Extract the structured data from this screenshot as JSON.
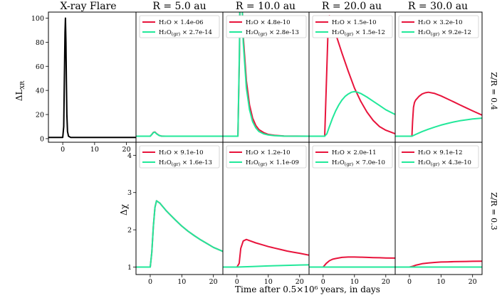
{
  "colors": {
    "water": "#e8143c",
    "ice": "#22e89a",
    "flare": "#000000"
  },
  "column_titles": [
    "X-ray Flare",
    "R = 5.0 au",
    "R = 10.0 au",
    "R = 20.0 au",
    "R = 30.0 au"
  ],
  "row_labels": [
    "Z/R = 0.4",
    "Z/R = 0.3"
  ],
  "xlabel": "Time after 0.5×10⁶ years, in days",
  "ylabel_top": "ΔL",
  "ylabel_top_sub": "XR",
  "ylabel_bottom": "Δχ",
  "legend_prefix": {
    "water": "H₂O × ",
    "ice": "H₂O",
    "ice_sub": "(gr)",
    "ice_mult": " × "
  },
  "chart_data": [
    {
      "panel": "flare",
      "type": "line",
      "title": "X-ray Flare",
      "xlim": [
        -4.5,
        23
      ],
      "ylim": [
        -3,
        105
      ],
      "xticks": [
        0,
        10,
        20
      ],
      "yticks": [
        0,
        20,
        40,
        60,
        80,
        100
      ],
      "series": [
        {
          "x": [
            -4.5,
            0,
            0.3,
            0.5,
            0.7,
            0.85,
            1.0,
            1.15,
            1.3,
            1.5,
            1.8,
            2.5,
            23
          ],
          "y": [
            1,
            1,
            10,
            50,
            88,
            100,
            80,
            45,
            20,
            6,
            2,
            1,
            1
          ]
        }
      ]
    },
    {
      "panel": "R5_Z04",
      "type": "line",
      "title": "R = 5.0 au",
      "row": "Z/R = 0.4",
      "xlim": [
        -4.5,
        23
      ],
      "ylim": [
        -3,
        105
      ],
      "legend": [
        "1.4e-06",
        "2.7e-14"
      ],
      "series": [
        {
          "key": "water",
          "x": [
            -4.5,
            0,
            0.5,
            1.0,
            1.5,
            2.0,
            2.8,
            3.6,
            5,
            23
          ],
          "y": [
            2,
            2,
            3.5,
            5.2,
            5.5,
            4.2,
            2.7,
            2.1,
            2,
            2
          ]
        },
        {
          "key": "ice",
          "x": [
            -4.5,
            0,
            0.5,
            1.0,
            1.5,
            2.0,
            2.8,
            3.6,
            5,
            23
          ],
          "y": [
            2,
            2,
            3.4,
            5.0,
            5.3,
            4.0,
            2.6,
            2.05,
            2,
            2
          ]
        }
      ]
    },
    {
      "panel": "R10_Z04",
      "type": "line",
      "title": "R = 10.0 au",
      "row": "Z/R = 0.4",
      "xlim": [
        -4.5,
        23
      ],
      "ylim": [
        -3,
        105
      ],
      "legend": [
        "4.8e-10",
        "2.8e-13"
      ],
      "series": [
        {
          "key": "water",
          "x": [
            -4.5,
            0.3,
            0.8,
            1.0,
            1.4,
            2.0,
            3.0,
            4.0,
            5.0,
            6.0,
            7.0,
            8.5,
            10,
            12,
            15,
            23
          ],
          "y": [
            2,
            2,
            70,
            130,
            130,
            85,
            48,
            28,
            17,
            11,
            7.5,
            5,
            3.5,
            2.8,
            2.2,
            2
          ]
        },
        {
          "key": "ice",
          "x": [
            -4.5,
            0.3,
            0.8,
            1.0,
            1.4,
            2.0,
            3.0,
            4.0,
            5.0,
            6.0,
            7.0,
            8.5,
            10,
            12,
            15,
            23
          ],
          "y": [
            2,
            2,
            75,
            130,
            130,
            80,
            42,
            24,
            14,
            9,
            6,
            4,
            3,
            2.4,
            2.1,
            2
          ]
        }
      ]
    },
    {
      "panel": "R20_Z04",
      "type": "line",
      "title": "R = 20.0 au",
      "row": "Z/R = 0.4",
      "xlim": [
        -4.5,
        23
      ],
      "ylim": [
        -3,
        105
      ],
      "legend": [
        "1.5e-10",
        "1.5e-12"
      ],
      "series": [
        {
          "key": "water",
          "x": [
            -4.5,
            0.5,
            1.2,
            1.6,
            2.0,
            2.5,
            3.0,
            4.0,
            5.0,
            6.0,
            8.0,
            10,
            12,
            14,
            16,
            18,
            20,
            23
          ],
          "y": [
            2,
            2,
            60,
            92,
            102,
            99,
            95,
            87,
            79,
            71,
            56,
            42,
            31,
            22,
            15,
            10,
            7,
            4
          ]
        },
        {
          "key": "ice",
          "x": [
            -4.5,
            0.5,
            1.2,
            2.0,
            3.0,
            4.0,
            5.0,
            6.0,
            7.0,
            8.0,
            9.0,
            10.0,
            11,
            12,
            14,
            16,
            18,
            20,
            23
          ],
          "y": [
            2,
            2,
            4,
            10,
            17,
            23,
            28,
            32,
            35,
            37,
            38.5,
            39,
            38.5,
            37.5,
            34.5,
            31,
            27.5,
            24,
            20
          ]
        }
      ]
    },
    {
      "panel": "R30_Z04",
      "type": "line",
      "title": "R = 30.0 au",
      "row": "Z/R = 0.4",
      "xlim": [
        -4.5,
        23
      ],
      "ylim": [
        -3,
        105
      ],
      "legend": [
        "3.2e-10",
        "9.2e-12"
      ],
      "series": [
        {
          "key": "water",
          "x": [
            -4.5,
            0.8,
            1.0,
            1.3,
            1.6,
            2.0,
            3.0,
            4.0,
            5.0,
            6.0,
            8,
            10,
            12,
            14,
            16,
            18,
            20,
            23
          ],
          "y": [
            2,
            2,
            14,
            26,
            30,
            32,
            35,
            37,
            38,
            38.5,
            37.5,
            35.5,
            33,
            30.5,
            28,
            25.5,
            23,
            19.5
          ]
        },
        {
          "key": "ice",
          "x": [
            -4.5,
            0.8,
            2,
            4,
            6,
            8,
            10,
            12,
            14,
            16,
            18,
            20,
            23
          ],
          "y": [
            2,
            2,
            3.5,
            5.8,
            7.8,
            9.6,
            11.2,
            12.6,
            13.8,
            14.8,
            15.6,
            16.3,
            17
          ]
        }
      ]
    },
    {
      "panel": "R5_Z03",
      "type": "line",
      "row": "Z/R = 0.3",
      "xlim": [
        -4.5,
        23
      ],
      "ylim": [
        0.8,
        4.35
      ],
      "xticks": [
        0,
        10,
        20
      ],
      "yticks": [
        1,
        2,
        3,
        4
      ],
      "legend": [
        "9.1e-10",
        "1.6e-13"
      ],
      "series": [
        {
          "key": "water",
          "x": [
            -4.5,
            0,
            0.5,
            1.0,
            1.5,
            2.0,
            3,
            4,
            5,
            6,
            8,
            10,
            12,
            14,
            16,
            18,
            20,
            23
          ],
          "y": [
            1,
            1,
            1.4,
            2.1,
            2.6,
            2.78,
            2.72,
            2.62,
            2.52,
            2.43,
            2.26,
            2.1,
            1.96,
            1.84,
            1.73,
            1.63,
            1.53,
            1.42
          ]
        },
        {
          "key": "ice",
          "x": [
            -4.5,
            0,
            0.5,
            1.0,
            1.5,
            2.0,
            3,
            4,
            5,
            6,
            8,
            10,
            12,
            14,
            16,
            18,
            20,
            23
          ],
          "y": [
            1,
            1,
            1.4,
            2.1,
            2.6,
            2.78,
            2.72,
            2.62,
            2.52,
            2.43,
            2.26,
            2.1,
            1.96,
            1.84,
            1.73,
            1.63,
            1.53,
            1.42
          ]
        }
      ]
    },
    {
      "panel": "R10_Z03",
      "type": "line",
      "row": "Z/R = 0.3",
      "xlim": [
        -4.5,
        23
      ],
      "ylim": [
        0.8,
        4.35
      ],
      "xticks": [
        0,
        10,
        20
      ],
      "legend": [
        "1.2e-10",
        "1.1e-09"
      ],
      "series": [
        {
          "key": "water",
          "x": [
            -4.5,
            0,
            0.7,
            1.2,
            2,
            3,
            4,
            6,
            8,
            10,
            12,
            14,
            16,
            18,
            20,
            23
          ],
          "y": [
            1,
            1,
            1.1,
            1.5,
            1.7,
            1.74,
            1.71,
            1.65,
            1.6,
            1.55,
            1.51,
            1.47,
            1.43,
            1.4,
            1.37,
            1.32
          ]
        },
        {
          "key": "ice",
          "x": [
            -4.5,
            0,
            5,
            10,
            15,
            20,
            23
          ],
          "y": [
            1,
            1,
            1.015,
            1.03,
            1.045,
            1.055,
            1.06
          ]
        }
      ]
    },
    {
      "panel": "R20_Z03",
      "type": "line",
      "row": "Z/R = 0.3",
      "xlim": [
        -4.5,
        23
      ],
      "ylim": [
        0.8,
        4.35
      ],
      "xticks": [
        0,
        10,
        20
      ],
      "legend": [
        "2.0e-11",
        "7.0e-10"
      ],
      "series": [
        {
          "key": "water",
          "x": [
            -4.5,
            0,
            1,
            2,
            3,
            4,
            6,
            8,
            10,
            12,
            14,
            16,
            18,
            20,
            23
          ],
          "y": [
            1,
            1,
            1.1,
            1.17,
            1.21,
            1.23,
            1.26,
            1.27,
            1.27,
            1.265,
            1.26,
            1.255,
            1.25,
            1.245,
            1.24
          ]
        },
        {
          "key": "ice",
          "x": [
            -4.5,
            23
          ],
          "y": [
            1,
            1
          ]
        }
      ]
    },
    {
      "panel": "R30_Z03",
      "type": "line",
      "row": "Z/R = 0.3",
      "xlim": [
        -4.5,
        23
      ],
      "ylim": [
        0.8,
        4.35
      ],
      "xticks": [
        0,
        10,
        20
      ],
      "legend": [
        "9.1e-12",
        "4.3e-10"
      ],
      "series": [
        {
          "key": "water",
          "x": [
            -4.5,
            0,
            1,
            2,
            3,
            4,
            6,
            8,
            10,
            12,
            14,
            16,
            18,
            20,
            23
          ],
          "y": [
            1,
            1,
            1.02,
            1.05,
            1.07,
            1.09,
            1.11,
            1.125,
            1.135,
            1.14,
            1.145,
            1.15,
            1.152,
            1.155,
            1.158
          ]
        },
        {
          "key": "ice",
          "x": [
            -4.5,
            23
          ],
          "y": [
            1,
            1
          ]
        }
      ]
    }
  ]
}
